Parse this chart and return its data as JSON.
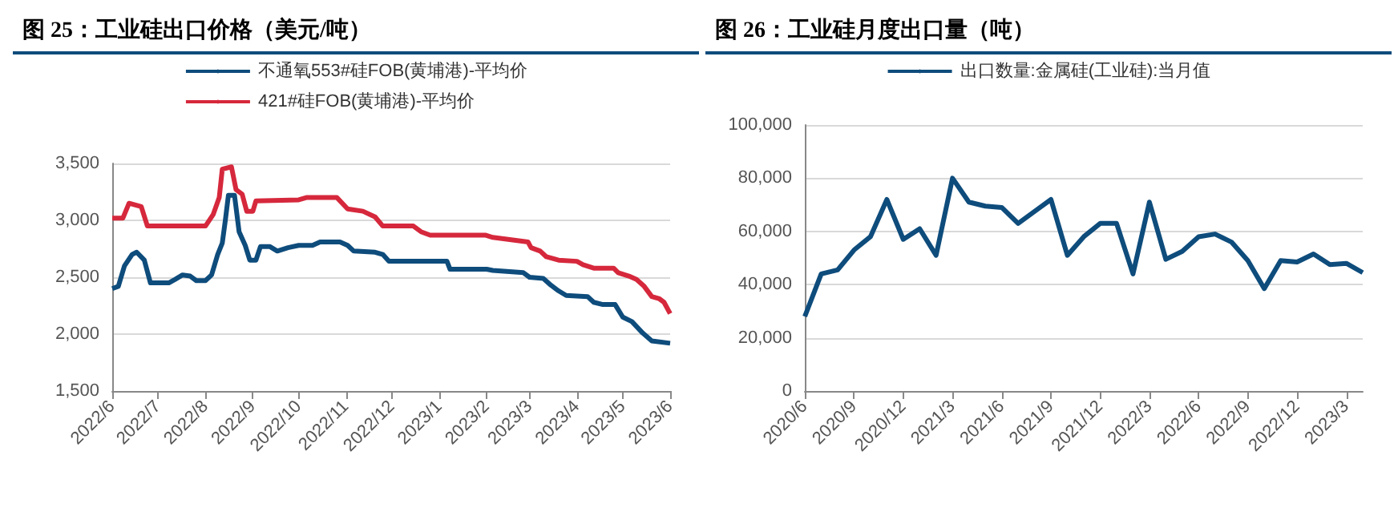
{
  "chart_data": [
    {
      "type": "line",
      "title": "图 25：工业硅出口价格（美元/吨）",
      "legend": "top",
      "grid": "y",
      "xlim": [
        "2022-06-01",
        "2023-06-01"
      ],
      "xticks": [
        {
          "value": "2022-06-01",
          "label": "2022/6"
        },
        {
          "value": "2022-07-01",
          "label": "2022/7"
        },
        {
          "value": "2022-08-01",
          "label": "2022/8"
        },
        {
          "value": "2022-09-01",
          "label": "2022/9"
        },
        {
          "value": "2022-10-01",
          "label": "2022/10"
        },
        {
          "value": "2022-11-01",
          "label": "2022/11"
        },
        {
          "value": "2022-12-01",
          "label": "2022/12"
        },
        {
          "value": "2023-01-01",
          "label": "2023/1"
        },
        {
          "value": "2023-02-01",
          "label": "2023/2"
        },
        {
          "value": "2023-03-01",
          "label": "2023/3"
        },
        {
          "value": "2023-04-01",
          "label": "2023/4"
        },
        {
          "value": "2023-05-01",
          "label": "2023/5"
        },
        {
          "value": "2023-06-01",
          "label": "2023/6"
        }
      ],
      "ylim": [
        1500,
        3500
      ],
      "yticks": [
        {
          "value": 1500,
          "label": "1,500"
        },
        {
          "value": 2000,
          "label": "2,000"
        },
        {
          "value": 2500,
          "label": "2,500"
        },
        {
          "value": 3000,
          "label": "3,000"
        },
        {
          "value": 3500,
          "label": "3,500"
        }
      ],
      "series": [
        {
          "name": "不通氧553#硅FOB(黄埔港)-平均价",
          "color": "#0e4c7c",
          "x": [
            "2022-06-01",
            "2022-06-05",
            "2022-06-09",
            "2022-06-14",
            "2022-06-17",
            "2022-06-22",
            "2022-06-26",
            "2022-07-08",
            "2022-07-12",
            "2022-07-17",
            "2022-07-22",
            "2022-07-26",
            "2022-08-01",
            "2022-08-05",
            "2022-08-09",
            "2022-08-12",
            "2022-08-14",
            "2022-08-16",
            "2022-08-20",
            "2022-08-23",
            "2022-08-27",
            "2022-08-30",
            "2022-09-03",
            "2022-09-06",
            "2022-09-12",
            "2022-09-17",
            "2022-09-24",
            "2022-10-01",
            "2022-10-10",
            "2022-10-15",
            "2022-10-28",
            "2022-11-02",
            "2022-11-06",
            "2022-11-20",
            "2022-11-25",
            "2022-11-29",
            "2023-01-06",
            "2023-01-08",
            "2023-02-01",
            "2023-02-05",
            "2023-02-25",
            "2023-03-01",
            "2023-03-10",
            "2023-03-15",
            "2023-03-20",
            "2023-03-25",
            "2023-04-08",
            "2023-04-12",
            "2023-04-18",
            "2023-04-26",
            "2023-05-01",
            "2023-05-07",
            "2023-05-14",
            "2023-05-20",
            "2023-06-01"
          ],
          "values": [
            2400,
            2420,
            2600,
            2700,
            2720,
            2650,
            2450,
            2450,
            2480,
            2520,
            2510,
            2470,
            2470,
            2520,
            2700,
            2800,
            3000,
            3220,
            3220,
            2900,
            2780,
            2650,
            2650,
            2770,
            2770,
            2730,
            2760,
            2780,
            2780,
            2810,
            2810,
            2780,
            2730,
            2720,
            2700,
            2640,
            2640,
            2570,
            2570,
            2560,
            2540,
            2500,
            2490,
            2430,
            2380,
            2340,
            2330,
            2280,
            2260,
            2260,
            2150,
            2110,
            2010,
            1940,
            1920
          ]
        },
        {
          "name": "421#硅FOB(黄埔港)-平均价",
          "color": "#d6283c",
          "x": [
            "2022-06-01",
            "2022-06-08",
            "2022-06-12",
            "2022-06-20",
            "2022-06-24",
            "2022-08-01",
            "2022-08-06",
            "2022-08-10",
            "2022-08-12",
            "2022-08-18",
            "2022-08-21",
            "2022-08-25",
            "2022-08-28",
            "2022-09-01",
            "2022-09-03",
            "2022-10-01",
            "2022-10-06",
            "2022-10-26",
            "2022-11-02",
            "2022-11-12",
            "2022-11-20",
            "2022-11-25",
            "2022-12-15",
            "2022-12-20",
            "2022-12-26",
            "2023-01-31",
            "2023-02-05",
            "2023-02-28",
            "2023-03-02",
            "2023-03-08",
            "2023-03-12",
            "2023-03-20",
            "2023-04-01",
            "2023-04-05",
            "2023-04-12",
            "2023-04-25",
            "2023-04-28",
            "2023-05-05",
            "2023-05-10",
            "2023-05-15",
            "2023-05-20",
            "2023-05-25",
            "2023-05-28",
            "2023-06-01"
          ],
          "values": [
            3020,
            3020,
            3150,
            3120,
            2950,
            2950,
            3050,
            3200,
            3450,
            3470,
            3270,
            3230,
            3080,
            3080,
            3170,
            3180,
            3200,
            3200,
            3100,
            3080,
            3030,
            2950,
            2950,
            2900,
            2870,
            2870,
            2850,
            2810,
            2760,
            2730,
            2680,
            2650,
            2640,
            2610,
            2580,
            2580,
            2540,
            2510,
            2480,
            2420,
            2330,
            2310,
            2280,
            2180
          ]
        }
      ]
    },
    {
      "type": "line",
      "title": "图 26：工业硅月度出口量（吨）",
      "legend": "top",
      "grid": "y",
      "categories": [
        "2020/6",
        null,
        null,
        "2020/9",
        null,
        null,
        "2020/12",
        null,
        null,
        "2021/3",
        null,
        null,
        "2021/6",
        null,
        null,
        "2021/9",
        null,
        null,
        "2021/12",
        null,
        null,
        "2022/3",
        null,
        null,
        "2022/6",
        null,
        null,
        "2022/9",
        null,
        null,
        "2022/12",
        null,
        null,
        "2023/3",
        null
      ],
      "ylim": [
        0,
        100000
      ],
      "yticks": [
        {
          "value": 0,
          "label": "0"
        },
        {
          "value": 20000,
          "label": "20,000"
        },
        {
          "value": 40000,
          "label": "40,000"
        },
        {
          "value": 60000,
          "label": "60,000"
        },
        {
          "value": 80000,
          "label": "80,000"
        },
        {
          "value": 100000,
          "label": "100,000"
        }
      ],
      "series": [
        {
          "name": "出口数量:金属硅(工业硅):当月值",
          "color": "#0e4c7c",
          "values": [
            28000,
            44000,
            45500,
            53000,
            58000,
            72000,
            57000,
            61000,
            51000,
            80000,
            71000,
            69500,
            69000,
            63000,
            67500,
            72000,
            51000,
            58000,
            63000,
            63000,
            44000,
            71000,
            49500,
            52500,
            58000,
            59000,
            56000,
            49000,
            38500,
            49000,
            48500,
            51500,
            47500,
            48000,
            44500
          ]
        }
      ]
    }
  ]
}
